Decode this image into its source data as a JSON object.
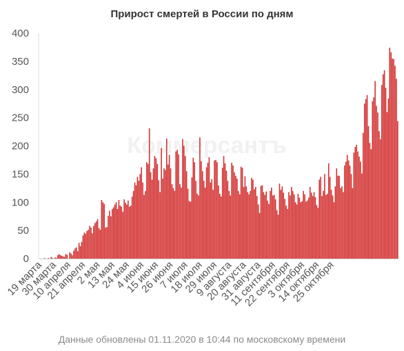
{
  "chart_data": {
    "type": "bar",
    "title": "Прирост смертей в России по дням",
    "watermark": "Коммерсантъ",
    "xlabel": "",
    "ylabel": "",
    "ylim": [
      0,
      400
    ],
    "yticks": [
      0,
      50,
      100,
      150,
      200,
      250,
      300,
      350,
      400
    ],
    "grid": false,
    "bar_color": "#d32f2f",
    "start_date": "19 марта",
    "xtick_labels": [
      "19 марта",
      "30 марта",
      "10 апреля",
      "21 апреля",
      "2 мая",
      "13 мая",
      "24 мая",
      "4 июня",
      "15 июня",
      "26 июня",
      "7 июля",
      "18 июля",
      "29 июля",
      "9 августа",
      "20 августа",
      "31 августа",
      "11 сентября",
      "22 сентября",
      "3 октября",
      "14 октября",
      "25 октября"
    ],
    "xtick_step_days": 11,
    "values": [
      0,
      0,
      0,
      1,
      0,
      0,
      1,
      0,
      3,
      1,
      0,
      2,
      1,
      6,
      8,
      6,
      5,
      4,
      3,
      8,
      7,
      0,
      11,
      9,
      6,
      14,
      18,
      20,
      13,
      28,
      22,
      30,
      41,
      46,
      44,
      49,
      51,
      58,
      55,
      45,
      58,
      63,
      66,
      70,
      54,
      51,
      104,
      100,
      97,
      55,
      56,
      76,
      85,
      75,
      88,
      91,
      96,
      100,
      88,
      104,
      94,
      92,
      83,
      105,
      99,
      96,
      103,
      92,
      94,
      110,
      120,
      135,
      130,
      145,
      138,
      150,
      162,
      135,
      113,
      120,
      171,
      168,
      231,
      153,
      140,
      160,
      182,
      178,
      168,
      139,
      118,
      196,
      142,
      160,
      157,
      213,
      167,
      184,
      160,
      132,
      125,
      120,
      190,
      193,
      185,
      132,
      126,
      212,
      200,
      182,
      155,
      124,
      102,
      101,
      144,
      179,
      171,
      138,
      115,
      112,
      215,
      173,
      155,
      138,
      126,
      162,
      170,
      180,
      135,
      141,
      122,
      174,
      175,
      171,
      130,
      115,
      110,
      161,
      182,
      169,
      156,
      138,
      120,
      112,
      170,
      165,
      153,
      147,
      142,
      120,
      114,
      163,
      161,
      127,
      146,
      128,
      118,
      114,
      120,
      143,
      140,
      123,
      127,
      111,
      96,
      81,
      129,
      130,
      118,
      113,
      119,
      103,
      97,
      120,
      126,
      112,
      113,
      105,
      86,
      78,
      133,
      122,
      128,
      117,
      106,
      94,
      88,
      118,
      112,
      127,
      120,
      114,
      100,
      96,
      115,
      108,
      100,
      102,
      120,
      114,
      101,
      103,
      108,
      127,
      117,
      111,
      118,
      109,
      95,
      90,
      140,
      145,
      111,
      120,
      150,
      113,
      115,
      169,
      145,
      122,
      112,
      100,
      128,
      160,
      147,
      147,
      125,
      128,
      118,
      165,
      172,
      184,
      174,
      165,
      150,
      125,
      188,
      198,
      202,
      190,
      181,
      172,
      151,
      223,
      275,
      283,
      290,
      235,
      205,
      194,
      279,
      286,
      315,
      271,
      259,
      226,
      212,
      308,
      327,
      334,
      303,
      260,
      284,
      374,
      366,
      355,
      354,
      342,
      319,
      244
    ]
  },
  "footer": "Данные обновлены 01.11.2020 в 10:44 по московскому времени"
}
